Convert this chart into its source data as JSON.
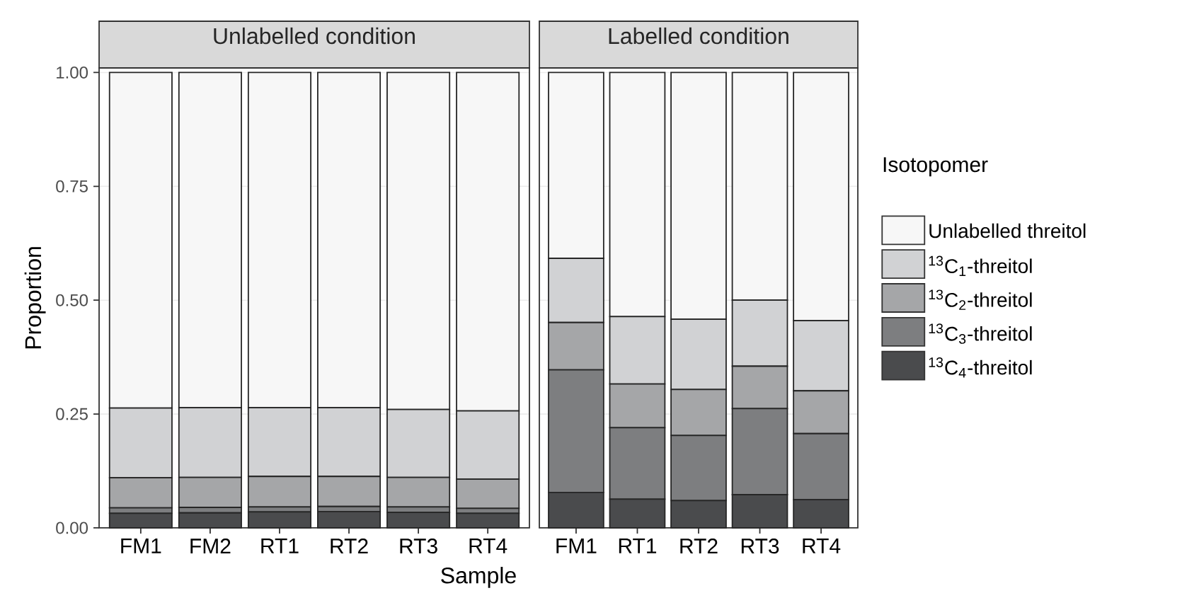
{
  "chart_data": [
    {
      "type": "bar",
      "title": "Unlabelled condition",
      "xlabel": "Sample",
      "ylabel": "Proportion",
      "stacked": true,
      "grid": "y",
      "categories": [
        "FM1",
        "FM2",
        "RT1",
        "RT2",
        "RT3",
        "RT4"
      ],
      "ylim": [
        0,
        1.01
      ],
      "yticks": [
        {
          "value": 0,
          "label": "0.00"
        },
        {
          "value": 0.25,
          "label": "0.25"
        },
        {
          "value": 0.5,
          "label": "0.50"
        },
        {
          "value": 0.75,
          "label": "0.75"
        },
        {
          "value": 1,
          "label": "1.00"
        }
      ],
      "series": [
        {
          "color": "#4a4b4d",
          "values": [
            0.032,
            0.033,
            0.035,
            0.036,
            0.034,
            0.032
          ]
        },
        {
          "color": "#7d7e80",
          "values": [
            0.012,
            0.012,
            0.011,
            0.011,
            0.012,
            0.011
          ]
        },
        {
          "color": "#a5a6a8",
          "values": [
            0.066,
            0.066,
            0.067,
            0.066,
            0.065,
            0.064
          ]
        },
        {
          "color": "#d1d2d4",
          "values": [
            0.153,
            0.153,
            0.151,
            0.151,
            0.149,
            0.15
          ]
        },
        {
          "color": "#f7f7f7",
          "values": [
            0.737,
            0.736,
            0.736,
            0.736,
            0.74,
            0.743
          ]
        }
      ]
    },
    {
      "type": "bar",
      "title": "Labelled condition",
      "stacked": true,
      "grid": "y",
      "tick_labels": "x",
      "legend": "right",
      "legend_title": "Isotopomer",
      "categories": [
        "FM1",
        "RT1",
        "RT2",
        "RT3",
        "RT4"
      ],
      "ylim": [
        0,
        1.01
      ],
      "yticks": [
        0,
        0.25,
        0.5,
        0.75,
        1
      ],
      "series": [
        {
          "name": "$^{13}$C$_{4}$-threitol",
          "color": "#4a4b4d",
          "values": [
            0.078,
            0.063,
            0.06,
            0.073,
            0.062
          ]
        },
        {
          "name": "$^{13}$C$_{3}$-threitol",
          "color": "#7d7e80",
          "values": [
            0.269,
            0.157,
            0.143,
            0.189,
            0.145
          ]
        },
        {
          "name": "$^{13}$C$_{2}$-threitol",
          "color": "#a5a6a8",
          "values": [
            0.104,
            0.096,
            0.101,
            0.093,
            0.094
          ]
        },
        {
          "name": "$^{13}$C$_{1}$-threitol",
          "color": "#d1d2d4",
          "values": [
            0.141,
            0.148,
            0.154,
            0.145,
            0.154
          ]
        },
        {
          "name": "Unlabelled threitol",
          "color": "#f7f7f7",
          "values": [
            0.408,
            0.536,
            0.542,
            0.5,
            0.545
          ]
        }
      ]
    }
  ]
}
